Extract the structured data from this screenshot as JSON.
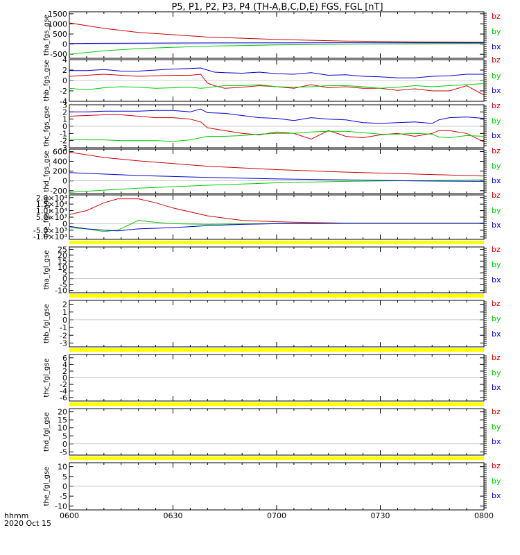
{
  "title": "P5, P1, P2, P3, P4 (TH-A,B,C,D,E) FGS, FGL [nT]",
  "time_axis_label": "hhmm",
  "date_label": "2020 Oct 15",
  "time_ticks": [
    "0600",
    "0630",
    "0700",
    "0730",
    "0800"
  ],
  "colors": {
    "bz": "#cc0000",
    "by": "#00cc00",
    "bx": "#0000cc",
    "flag": "#ffff00",
    "axis": "#000000"
  },
  "chart_data": [
    {
      "type": "line",
      "panel": "tha_fgs_gse",
      "ylabel": "tha_fgs_gse",
      "ylim": [
        -700,
        1600
      ],
      "yticks": [
        "1500",
        "1000",
        "500",
        "0",
        "-500"
      ],
      "ytick_values": [
        1500,
        1000,
        500,
        0,
        -500
      ],
      "x": [
        0,
        10,
        20,
        40,
        60,
        80,
        100,
        120
      ],
      "series": [
        {
          "name": "bz",
          "values": [
            1050,
            780,
            580,
            350,
            230,
            150,
            110,
            90
          ]
        },
        {
          "name": "by",
          "values": [
            -500,
            -330,
            -220,
            -100,
            -40,
            0,
            20,
            40
          ]
        },
        {
          "name": "bx",
          "values": [
            30,
            40,
            50,
            60,
            65,
            68,
            70,
            70
          ]
        }
      ],
      "legend": [
        "bz",
        "by",
        "bx"
      ],
      "flag_bar": false
    },
    {
      "type": "line",
      "panel": "thb_fgs_gse",
      "ylabel": "thb_fgs_gse",
      "ylim": [
        -4,
        4
      ],
      "yticks": [
        "4",
        "2",
        "0",
        "-2",
        "-4"
      ],
      "ytick_values": [
        4,
        2,
        0,
        -2,
        -4
      ],
      "x": [
        0,
        5,
        10,
        15,
        20,
        25,
        30,
        35,
        38,
        40,
        42,
        45,
        50,
        55,
        60,
        65,
        70,
        75,
        80,
        85,
        90,
        95,
        100,
        105,
        110,
        115,
        120
      ],
      "series": [
        {
          "name": "bz",
          "values": [
            0.8,
            1.0,
            1.2,
            1.0,
            0.8,
            0.9,
            1.0,
            1.0,
            1.2,
            -0.5,
            -1.0,
            -1.5,
            -1.3,
            -1.0,
            -1.2,
            -1.5,
            -0.8,
            -1.4,
            -1.2,
            -1.5,
            -1.5,
            -1.9,
            -1.6,
            -2.0,
            -2.0,
            -1.0,
            -2.8
          ]
        },
        {
          "name": "by",
          "values": [
            -1.5,
            -1.8,
            -1.4,
            -1.2,
            -1.3,
            -1.5,
            -1.4,
            -1.3,
            -1.5,
            -1.4,
            -1.2,
            -1.0,
            -1.0,
            -0.8,
            -1.2,
            -1.3,
            -1.2,
            -1.0,
            -1.0,
            -1.2,
            -1.5,
            -1.3,
            -1.0,
            -1.2,
            -1.0,
            -0.8,
            -0.6
          ]
        },
        {
          "name": "bx",
          "values": [
            1.9,
            1.9,
            2.1,
            1.8,
            1.8,
            2.0,
            2.2,
            2.3,
            2.4,
            2.0,
            1.6,
            1.5,
            1.4,
            1.6,
            1.3,
            1.2,
            1.5,
            1.0,
            1.1,
            0.8,
            0.7,
            0.5,
            0.5,
            0.8,
            0.9,
            1.2,
            1.2
          ]
        }
      ],
      "legend": [
        "bz",
        "by",
        "bx"
      ],
      "flag_bar": false
    },
    {
      "type": "line",
      "panel": "thc_fgs_gse",
      "ylabel": "thc_fgs_gse",
      "ylim": [
        -3,
        3
      ],
      "yticks": [
        "3",
        "2",
        "1",
        "0",
        "-1",
        "-2",
        "-3"
      ],
      "ytick_values": [
        3,
        2,
        1,
        0,
        -1,
        -2,
        -3
      ],
      "x": [
        0,
        5,
        10,
        15,
        20,
        25,
        30,
        35,
        38,
        40,
        45,
        50,
        55,
        60,
        65,
        70,
        75,
        80,
        85,
        90,
        95,
        100,
        105,
        107,
        110,
        115,
        120
      ],
      "series": [
        {
          "name": "bz",
          "values": [
            1.4,
            1.5,
            1.6,
            1.6,
            1.4,
            1.2,
            1.2,
            1.0,
            0.6,
            -0.2,
            -0.6,
            -1.0,
            -1.2,
            -0.8,
            -1.0,
            -1.8,
            -0.6,
            -1.4,
            -1.6,
            -1.2,
            -1.0,
            -1.4,
            -1.0,
            -0.6,
            -0.6,
            -1.0,
            -2.2
          ]
        },
        {
          "name": "by",
          "values": [
            -1.8,
            -1.9,
            -1.9,
            -2.0,
            -2.0,
            -2.0,
            -2.1,
            -1.9,
            -1.6,
            -1.4,
            -1.4,
            -1.3,
            -1.1,
            -1.0,
            -1.0,
            -0.8,
            -0.7,
            -0.7,
            -0.9,
            -1.1,
            -1.1,
            -1.0,
            -1.1,
            -1.5,
            -1.6,
            -1.3,
            -1.4
          ]
        },
        {
          "name": "bx",
          "values": [
            2.0,
            2.0,
            2.1,
            2.1,
            2.1,
            2.2,
            2.2,
            2.0,
            2.4,
            1.9,
            1.8,
            1.5,
            1.2,
            1.1,
            0.8,
            1.2,
            1.0,
            0.9,
            0.5,
            0.4,
            0.5,
            0.6,
            0.4,
            0.9,
            1.2,
            1.3,
            1.1
          ]
        }
      ],
      "legend": [
        "bz",
        "by",
        "bx"
      ],
      "flag_bar": false
    },
    {
      "type": "line",
      "panel": "thd_fgs_gse",
      "ylabel": "thd_fgs_gse",
      "ylim": [
        -260,
        650
      ],
      "yticks": [
        "600",
        "400",
        "200",
        "0",
        "-200"
      ],
      "ytick_values": [
        600,
        400,
        200,
        0,
        -200
      ],
      "x": [
        0,
        10,
        20,
        40,
        60,
        80,
        100,
        120
      ],
      "series": [
        {
          "name": "bz",
          "values": [
            590,
            480,
            410,
            300,
            230,
            180,
            140,
            100
          ]
        },
        {
          "name": "by",
          "values": [
            -235,
            -190,
            -150,
            -90,
            -40,
            -10,
            5,
            20
          ]
        },
        {
          "name": "bx",
          "values": [
            170,
            140,
            110,
            70,
            40,
            20,
            0,
            -10
          ]
        }
      ],
      "legend": [
        "bz",
        "by",
        "bx"
      ],
      "flag_bar": false
    },
    {
      "type": "line",
      "panel": "the_fgs_gse",
      "ylabel": "the_fgs_gse",
      "ylim": [
        -12000,
        22000
      ],
      "yticks": [
        "2.0×10⁴",
        "1.5×10⁴",
        "1.0×10⁴",
        "5.0×10³",
        "0",
        "-5.0×10³",
        "-1.0×10⁴"
      ],
      "ytick_values": [
        20000,
        15000,
        10000,
        5000,
        0,
        -5000,
        -10000
      ],
      "x": [
        0,
        5,
        10,
        14,
        20,
        25,
        30,
        40,
        50,
        60,
        70,
        82,
        100,
        120
      ],
      "series": [
        {
          "name": "bz",
          "values": [
            7000,
            10000,
            16000,
            19000,
            19000,
            16000,
            12000,
            6000,
            2500,
            1500,
            800,
            300,
            300,
            300
          ]
        },
        {
          "name": "by",
          "values": [
            -3000,
            -4000,
            -6000,
            -5000,
            2500,
            1000,
            0,
            -500,
            -200,
            0,
            100,
            300,
            300,
            300
          ]
        },
        {
          "name": "bx",
          "values": [
            -2000,
            -4000,
            -5000,
            -5500,
            -4000,
            -3500,
            -3000,
            -1500,
            -500,
            0,
            200,
            300,
            300,
            300
          ]
        }
      ],
      "legend": [
        "bz",
        "by",
        "bx"
      ],
      "flag_bar": false
    },
    {
      "type": "line",
      "panel": "tha_fgl_gse",
      "ylabel": "tha_fgl_gse",
      "ylim": [
        -12,
        27
      ],
      "yticks": [
        "25",
        "20",
        "15",
        "10",
        "5",
        "0",
        "-5",
        "-10"
      ],
      "ytick_values": [
        25,
        20,
        15,
        10,
        5,
        0,
        -5,
        -10
      ],
      "x": [],
      "series": [],
      "legend": [
        "bz",
        "by",
        "bx"
      ],
      "flag_bar": true
    },
    {
      "type": "line",
      "panel": "thb_fgl_gse",
      "ylabel": "thb_fgl_gse",
      "ylim": [
        -3.5,
        2.5
      ],
      "yticks": [
        "2",
        "1",
        "0",
        "-1",
        "-2",
        "-3"
      ],
      "ytick_values": [
        2,
        1,
        0,
        -1,
        -2,
        -3
      ],
      "x": [],
      "series": [],
      "legend": [
        "bz",
        "by",
        "bx"
      ],
      "flag_bar": true
    },
    {
      "type": "line",
      "panel": "thc_fgl_gse",
      "ylabel": "thc_fgl_gse",
      "ylim": [
        -7,
        7
      ],
      "yticks": [
        "6",
        "4",
        "2",
        "0",
        "-2",
        "-4",
        "-6"
      ],
      "ytick_values": [
        6,
        4,
        2,
        0,
        -2,
        -4,
        -6
      ],
      "x": [],
      "series": [],
      "legend": [
        "bz",
        "by",
        "bx"
      ],
      "flag_bar": true
    },
    {
      "type": "line",
      "panel": "thd_fgl_gse",
      "ylabel": "thd_fgl_gse",
      "ylim": [
        -7,
        22
      ],
      "yticks": [
        "20",
        "15",
        "10",
        "5",
        "0",
        "-5"
      ],
      "ytick_values": [
        20,
        15,
        10,
        5,
        0,
        -5
      ],
      "x": [],
      "series": [],
      "legend": [
        "bz",
        "by",
        "bx"
      ],
      "flag_bar": true
    },
    {
      "type": "line",
      "panel": "the_fgl_gse",
      "ylabel": "the_fgl_gse",
      "ylim": [
        -12,
        12
      ],
      "yticks": [
        "10",
        "5",
        "0",
        "-5",
        "-10"
      ],
      "ytick_values": [
        10,
        5,
        0,
        -5,
        -10
      ],
      "x": [],
      "series": [],
      "legend": [
        "bz",
        "by",
        "bx"
      ],
      "flag_bar": true
    }
  ]
}
